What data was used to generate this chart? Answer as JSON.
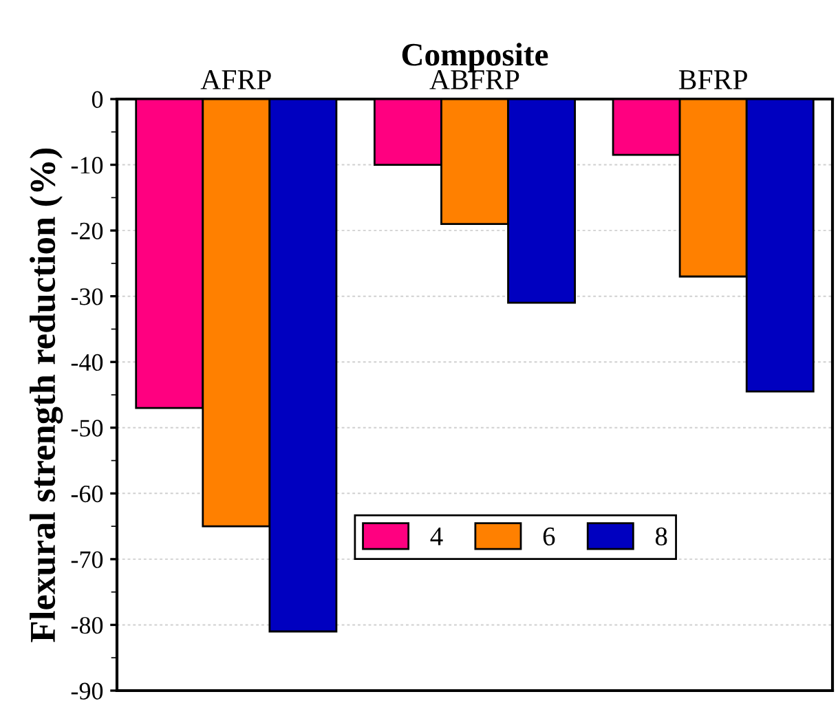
{
  "chart_data": {
    "type": "bar",
    "xlabel": "Composite",
    "ylabel": "Flexural strength reduction (%)",
    "categories": [
      "AFRP",
      "ABFRP",
      "BFRP"
    ],
    "series": [
      {
        "name": "4",
        "color": "#ff0080",
        "values": [
          -47,
          -10,
          -8.5
        ]
      },
      {
        "name": "6",
        "color": "#ff8000",
        "values": [
          -65,
          -19,
          -27
        ]
      },
      {
        "name": "8",
        "color": "#0000c0",
        "values": [
          -81,
          -31,
          -44.5
        ]
      }
    ],
    "ylim": [
      -90,
      0
    ],
    "yticks": [
      -90,
      -80,
      -70,
      -60,
      -50,
      -40,
      -30,
      -20,
      -10,
      0
    ],
    "grid": "y",
    "legend": "bottom right"
  }
}
